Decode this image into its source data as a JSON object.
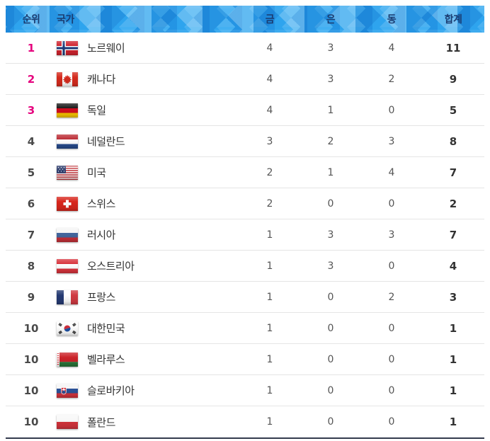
{
  "colors": {
    "accent_magenta": "#e5007d",
    "header_background_blue": "#2ea4ee",
    "header_text_navy": "#1b3c70",
    "bottom_border_dark": "#333b4d"
  },
  "table": {
    "columns": {
      "rank": "순위",
      "country": "국가",
      "gold": "금",
      "silver": "은",
      "bronze": "동",
      "total": "합계"
    },
    "rows": [
      {
        "rank": "1",
        "country": "노르웨이",
        "flag": "norway-flag",
        "gold": "4",
        "silver": "3",
        "bronze": "4",
        "total": "11"
      },
      {
        "rank": "2",
        "country": "캐나다",
        "flag": "canada-flag",
        "gold": "4",
        "silver": "3",
        "bronze": "2",
        "total": "9"
      },
      {
        "rank": "3",
        "country": "독일",
        "flag": "germany-flag",
        "gold": "4",
        "silver": "1",
        "bronze": "0",
        "total": "5"
      },
      {
        "rank": "4",
        "country": "네덜란드",
        "flag": "netherlands-flag",
        "gold": "3",
        "silver": "2",
        "bronze": "3",
        "total": "8"
      },
      {
        "rank": "5",
        "country": "미국",
        "flag": "usa-flag",
        "gold": "2",
        "silver": "1",
        "bronze": "4",
        "total": "7"
      },
      {
        "rank": "6",
        "country": "스위스",
        "flag": "switzerland-flag",
        "gold": "2",
        "silver": "0",
        "bronze": "0",
        "total": "2"
      },
      {
        "rank": "7",
        "country": "러시아",
        "flag": "russia-flag",
        "gold": "1",
        "silver": "3",
        "bronze": "3",
        "total": "7"
      },
      {
        "rank": "8",
        "country": "오스트리아",
        "flag": "austria-flag",
        "gold": "1",
        "silver": "3",
        "bronze": "0",
        "total": "4"
      },
      {
        "rank": "9",
        "country": "프랑스",
        "flag": "france-flag",
        "gold": "1",
        "silver": "0",
        "bronze": "2",
        "total": "3"
      },
      {
        "rank": "10",
        "country": "대한민국",
        "flag": "south-korea-flag",
        "gold": "1",
        "silver": "0",
        "bronze": "0",
        "total": "1"
      },
      {
        "rank": "10",
        "country": "벨라루스",
        "flag": "belarus-flag",
        "gold": "1",
        "silver": "0",
        "bronze": "0",
        "total": "1"
      },
      {
        "rank": "10",
        "country": "슬로바키아",
        "flag": "slovakia-flag",
        "gold": "1",
        "silver": "0",
        "bronze": "0",
        "total": "1"
      },
      {
        "rank": "10",
        "country": "폴란드",
        "flag": "poland-flag",
        "gold": "1",
        "silver": "0",
        "bronze": "0",
        "total": "1"
      }
    ]
  }
}
